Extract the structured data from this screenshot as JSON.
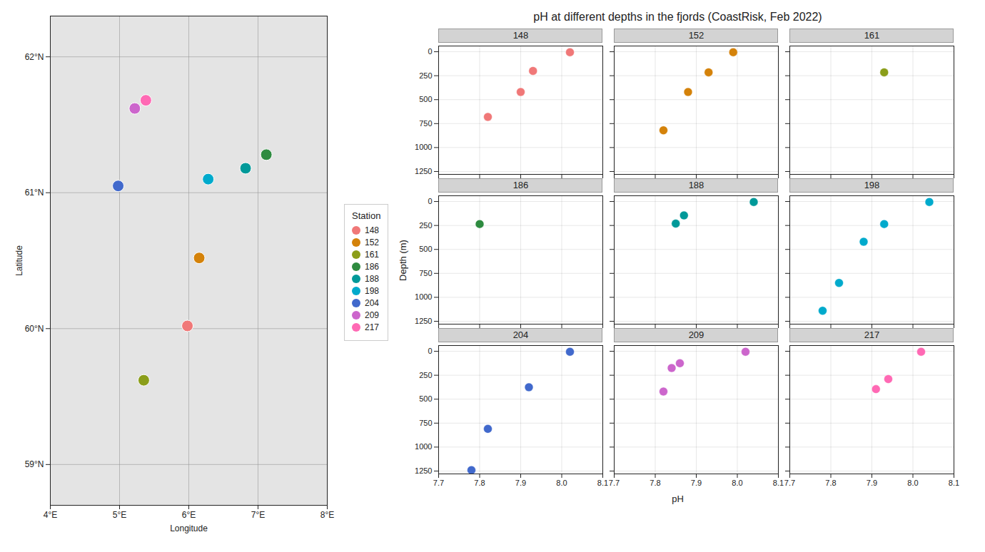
{
  "chart_data": [
    {
      "type": "scatter",
      "xlabel": "Longitude",
      "ylabel": "Latitude",
      "xlim": [
        4,
        8
      ],
      "ylim": [
        58.7,
        62.3
      ],
      "xticks": [
        {
          "value": 4,
          "label": "4°E"
        },
        {
          "value": 5,
          "label": "5°E"
        },
        {
          "value": 6,
          "label": "6°E"
        },
        {
          "value": 7,
          "label": "7°E"
        },
        {
          "value": 8,
          "label": "8°E"
        }
      ],
      "yticks": [
        {
          "value": 59,
          "label": "59°N"
        },
        {
          "value": 60,
          "label": "60°N"
        },
        {
          "value": 61,
          "label": "61°N"
        },
        {
          "value": 62,
          "label": "62°N"
        }
      ],
      "grid": true,
      "legend": "right",
      "legend_title": "Station",
      "series": [
        {
          "name": "148",
          "color": "#F07878",
          "x": [
            5.98
          ],
          "y": [
            60.02
          ]
        },
        {
          "name": "152",
          "color": "#D4820A",
          "x": [
            6.15
          ],
          "y": [
            60.52
          ]
        },
        {
          "name": "161",
          "color": "#8B9E1A",
          "x": [
            5.35
          ],
          "y": [
            59.62
          ]
        },
        {
          "name": "186",
          "color": "#2E8B40",
          "x": [
            7.12
          ],
          "y": [
            61.28
          ]
        },
        {
          "name": "188",
          "color": "#009999",
          "x": [
            6.82
          ],
          "y": [
            61.18
          ]
        },
        {
          "name": "198",
          "color": "#00AACC",
          "x": [
            6.28
          ],
          "y": [
            61.1
          ]
        },
        {
          "name": "204",
          "color": "#4169CC",
          "x": [
            4.98
          ],
          "y": [
            61.05
          ]
        },
        {
          "name": "209",
          "color": "#CC66CC",
          "x": [
            5.22
          ],
          "y": [
            61.62
          ]
        },
        {
          "name": "217",
          "color": "#FF69B4",
          "x": [
            5.38
          ],
          "y": [
            61.68
          ]
        }
      ]
    },
    {
      "type": "scatter",
      "title": "pH at different depths in the fjords (CoastRisk, Feb 2022)",
      "xlabel": "pH",
      "ylabel": "Depth (m)",
      "xlim": [
        7.7,
        8.1
      ],
      "ylim": [
        1280,
        -60
      ],
      "xticks": [
        7.7,
        7.8,
        7.9,
        {
          "value": 8.0,
          "label": "8.0"
        },
        8.1
      ],
      "yticks": [
        0,
        250,
        500,
        750,
        1000,
        1250
      ],
      "grid": true,
      "series": [
        {
          "name": "148",
          "color": "#F07878",
          "x": [
            8.02,
            7.93,
            7.9,
            7.82
          ],
          "y": [
            5,
            200,
            420,
            680
          ]
        },
        {
          "name": "152",
          "color": "#D4820A",
          "x": [
            7.99,
            7.93,
            7.88,
            7.82
          ],
          "y": [
            5,
            215,
            420,
            820
          ]
        },
        {
          "name": "161",
          "color": "#8B9E1A",
          "x": [
            7.93
          ],
          "y": [
            215
          ]
        },
        {
          "name": "186",
          "color": "#2E8B40",
          "x": [
            7.8
          ],
          "y": [
            235
          ]
        },
        {
          "name": "188",
          "color": "#009999",
          "x": [
            8.04,
            7.87,
            7.85
          ],
          "y": [
            5,
            145,
            230
          ]
        },
        {
          "name": "198",
          "color": "#00AACC",
          "x": [
            8.04,
            7.93,
            7.88,
            7.82,
            7.78
          ],
          "y": [
            5,
            235,
            420,
            850,
            1140
          ]
        },
        {
          "name": "204",
          "color": "#4169CC",
          "x": [
            8.02,
            7.92,
            7.82,
            7.78
          ],
          "y": [
            5,
            375,
            810,
            1240
          ]
        },
        {
          "name": "209",
          "color": "#CC66CC",
          "x": [
            8.02,
            7.86,
            7.84,
            7.82
          ],
          "y": [
            5,
            125,
            175,
            420
          ]
        },
        {
          "name": "217",
          "color": "#FF69B4",
          "x": [
            8.02,
            7.94,
            7.91
          ],
          "y": [
            5,
            290,
            395
          ]
        }
      ]
    }
  ]
}
